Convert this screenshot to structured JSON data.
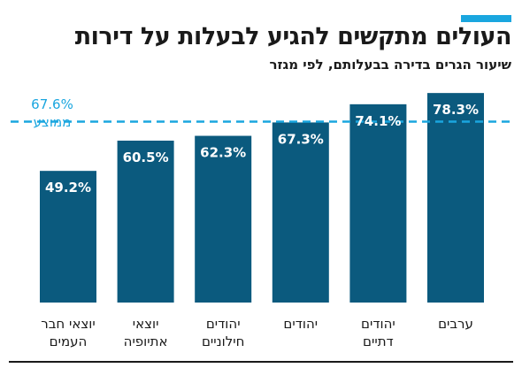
{
  "header": {
    "title": "העולים מתקשים להגיע לבעלות על דירות",
    "subtitle": "שיעור הגרים בדירה בבעלותם, לפי מגזר"
  },
  "colors": {
    "bar": "#0b5a7e",
    "accent": "#1aa6df",
    "average_line": "#1aa6df",
    "axis_text": "#1a1a1a",
    "bar_label": "#ffffff"
  },
  "chart_data": {
    "type": "bar",
    "categories": [
      [
        "יוצאי חבר",
        "העמים"
      ],
      [
        "יוצאי",
        "אתיופיה"
      ],
      [
        "יהודים",
        "חילוניים"
      ],
      [
        "יהודים"
      ],
      [
        "יהודים",
        "דתיים"
      ],
      [
        "ערבים"
      ]
    ],
    "values": [
      49.2,
      60.5,
      62.3,
      67.3,
      74.1,
      78.3
    ],
    "value_labels": [
      "49.2%",
      "60.5%",
      "62.3%",
      "67.3%",
      "74.1%",
      "78.3%"
    ],
    "ylim": [
      0,
      80
    ],
    "grid": false,
    "reference_line": {
      "value": 67.6,
      "value_label": "67.6%",
      "label": "ממוצע",
      "style": "dashed"
    }
  }
}
